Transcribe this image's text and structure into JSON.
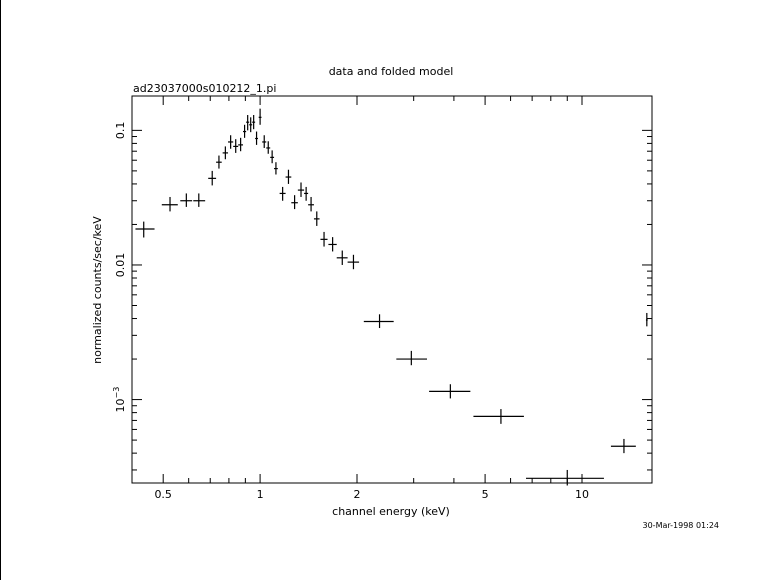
{
  "chart_data": {
    "type": "scatter",
    "title": "data and folded model",
    "subtitle": "ad23037000s010212_1.pi",
    "xlabel": "channel energy (keV)",
    "ylabel": "normalized counts/sec/keV",
    "timestamp": "30-Mar-1998 01:24",
    "xscale": "log",
    "yscale": "log",
    "xlim": [
      0.4,
      16.5
    ],
    "ylim": [
      0.00024,
      0.18
    ],
    "grid": false,
    "x_ticks": [
      {
        "value": 0.5,
        "label": "0.5"
      },
      {
        "value": 1,
        "label": "1"
      },
      {
        "value": 2,
        "label": "2"
      },
      {
        "value": 5,
        "label": "5"
      },
      {
        "value": 10,
        "label": "10"
      }
    ],
    "y_ticks": [
      {
        "value": 0.1,
        "label": "0.1"
      },
      {
        "value": 0.01,
        "label": "0.01"
      },
      {
        "value": 0.001,
        "label": "10",
        "sup": "−3"
      }
    ],
    "series": [
      {
        "points": [
          {
            "x": 0.435,
            "xlo": 0.41,
            "xhi": 0.47,
            "y": 0.0185,
            "ylo": 0.016,
            "yhi": 0.021
          },
          {
            "x": 0.525,
            "xlo": 0.495,
            "xhi": 0.555,
            "y": 0.028,
            "ylo": 0.025,
            "yhi": 0.032
          },
          {
            "x": 0.59,
            "xlo": 0.565,
            "xhi": 0.615,
            "y": 0.03,
            "ylo": 0.027,
            "yhi": 0.034
          },
          {
            "x": 0.645,
            "xlo": 0.62,
            "xhi": 0.675,
            "y": 0.03,
            "ylo": 0.027,
            "yhi": 0.034
          },
          {
            "x": 0.71,
            "xlo": 0.69,
            "xhi": 0.73,
            "y": 0.044,
            "ylo": 0.039,
            "yhi": 0.05
          },
          {
            "x": 0.745,
            "xlo": 0.73,
            "xhi": 0.76,
            "y": 0.058,
            "ylo": 0.052,
            "yhi": 0.065
          },
          {
            "x": 0.78,
            "xlo": 0.765,
            "xhi": 0.795,
            "y": 0.068,
            "ylo": 0.061,
            "yhi": 0.076
          },
          {
            "x": 0.81,
            "xlo": 0.795,
            "xhi": 0.825,
            "y": 0.082,
            "ylo": 0.073,
            "yhi": 0.092
          },
          {
            "x": 0.84,
            "xlo": 0.825,
            "xhi": 0.855,
            "y": 0.076,
            "ylo": 0.068,
            "yhi": 0.086
          },
          {
            "x": 0.87,
            "xlo": 0.855,
            "xhi": 0.885,
            "y": 0.078,
            "ylo": 0.07,
            "yhi": 0.088
          },
          {
            "x": 0.895,
            "xlo": 0.885,
            "xhi": 0.905,
            "y": 0.098,
            "ylo": 0.088,
            "yhi": 0.11
          },
          {
            "x": 0.915,
            "xlo": 0.905,
            "xhi": 0.925,
            "y": 0.115,
            "ylo": 0.1,
            "yhi": 0.13
          },
          {
            "x": 0.935,
            "xlo": 0.925,
            "xhi": 0.945,
            "y": 0.11,
            "ylo": 0.097,
            "yhi": 0.125
          },
          {
            "x": 0.955,
            "xlo": 0.945,
            "xhi": 0.965,
            "y": 0.115,
            "ylo": 0.102,
            "yhi": 0.13
          },
          {
            "x": 0.975,
            "xlo": 0.965,
            "xhi": 0.985,
            "y": 0.087,
            "ylo": 0.078,
            "yhi": 0.098
          },
          {
            "x": 1.0,
            "xlo": 0.99,
            "xhi": 1.01,
            "y": 0.125,
            "ylo": 0.11,
            "yhi": 0.145
          },
          {
            "x": 1.03,
            "xlo": 1.015,
            "xhi": 1.045,
            "y": 0.082,
            "ylo": 0.074,
            "yhi": 0.092
          },
          {
            "x": 1.06,
            "xlo": 1.045,
            "xhi": 1.075,
            "y": 0.074,
            "ylo": 0.067,
            "yhi": 0.083
          },
          {
            "x": 1.09,
            "xlo": 1.075,
            "xhi": 1.105,
            "y": 0.063,
            "ylo": 0.057,
            "yhi": 0.071
          },
          {
            "x": 1.12,
            "xlo": 1.105,
            "xhi": 1.135,
            "y": 0.052,
            "ylo": 0.047,
            "yhi": 0.058
          },
          {
            "x": 1.175,
            "xlo": 1.15,
            "xhi": 1.2,
            "y": 0.034,
            "ylo": 0.03,
            "yhi": 0.038
          },
          {
            "x": 1.225,
            "xlo": 1.2,
            "xhi": 1.25,
            "y": 0.045,
            "ylo": 0.04,
            "yhi": 0.051
          },
          {
            "x": 1.28,
            "xlo": 1.25,
            "xhi": 1.31,
            "y": 0.029,
            "ylo": 0.026,
            "yhi": 0.033
          },
          {
            "x": 1.34,
            "xlo": 1.31,
            "xhi": 1.37,
            "y": 0.036,
            "ylo": 0.032,
            "yhi": 0.041
          },
          {
            "x": 1.39,
            "xlo": 1.37,
            "xhi": 1.41,
            "y": 0.034,
            "ylo": 0.03,
            "yhi": 0.038
          },
          {
            "x": 1.44,
            "xlo": 1.41,
            "xhi": 1.47,
            "y": 0.028,
            "ylo": 0.025,
            "yhi": 0.032
          },
          {
            "x": 1.5,
            "xlo": 1.47,
            "xhi": 1.53,
            "y": 0.022,
            "ylo": 0.0195,
            "yhi": 0.025
          },
          {
            "x": 1.58,
            "xlo": 1.54,
            "xhi": 1.62,
            "y": 0.0155,
            "ylo": 0.0137,
            "yhi": 0.0176
          },
          {
            "x": 1.68,
            "xlo": 1.63,
            "xhi": 1.73,
            "y": 0.0142,
            "ylo": 0.0126,
            "yhi": 0.0161
          },
          {
            "x": 1.8,
            "xlo": 1.73,
            "xhi": 1.87,
            "y": 0.0113,
            "ylo": 0.01,
            "yhi": 0.0128
          },
          {
            "x": 1.95,
            "xlo": 1.87,
            "xhi": 2.03,
            "y": 0.0105,
            "ylo": 0.0093,
            "yhi": 0.0119
          },
          {
            "x": 2.35,
            "xlo": 2.1,
            "xhi": 2.6,
            "y": 0.0038,
            "ylo": 0.0034,
            "yhi": 0.0043
          },
          {
            "x": 2.95,
            "xlo": 2.65,
            "xhi": 3.3,
            "y": 0.002,
            "ylo": 0.0018,
            "yhi": 0.0023
          },
          {
            "x": 3.9,
            "xlo": 3.35,
            "xhi": 4.5,
            "y": 0.00115,
            "ylo": 0.00102,
            "yhi": 0.0013
          },
          {
            "x": 5.6,
            "xlo": 4.6,
            "xhi": 6.6,
            "y": 0.00075,
            "ylo": 0.00066,
            "yhi": 0.00085
          },
          {
            "x": 9.0,
            "xlo": 6.7,
            "xhi": 11.7,
            "y": 0.00026,
            "ylo": 0.00023,
            "yhi": 0.0003
          },
          {
            "x": 13.5,
            "xlo": 12.3,
            "xhi": 14.7,
            "y": 0.00045,
            "ylo": 0.0004,
            "yhi": 0.00051
          },
          {
            "x": 15.9,
            "xlo": 15.8,
            "xhi": 16.0,
            "y": 0.0039,
            "ylo": 0.0035,
            "yhi": 0.0044
          }
        ]
      }
    ]
  }
}
